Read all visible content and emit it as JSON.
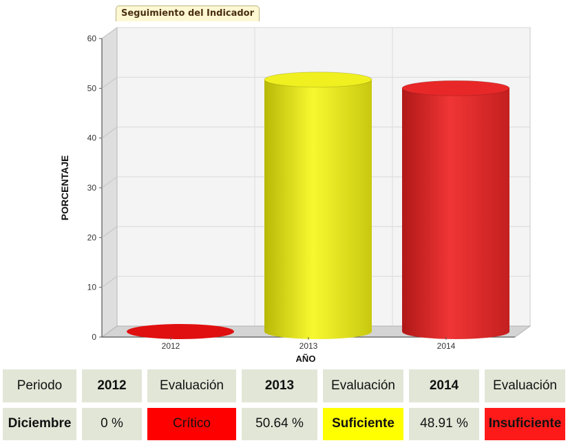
{
  "chart_data": {
    "type": "bar",
    "style": "3d-cylinder",
    "title": "Seguimiento del Indicador",
    "xlabel": "AÑO",
    "ylabel": "PORCENTAJE",
    "categories": [
      "2012",
      "2013",
      "2014"
    ],
    "values": [
      0,
      50.64,
      48.91
    ],
    "bar_colors": [
      "#e01010",
      "#f0f020",
      "#e82828"
    ],
    "ylim": [
      0,
      60
    ],
    "yticks": [
      "0",
      "10",
      "20",
      "30",
      "40",
      "50",
      "60"
    ],
    "grid": true,
    "legend": "none"
  },
  "table": {
    "header": [
      "Periodo",
      "2012",
      "Evaluación",
      "2013",
      "Evaluación",
      "2014",
      "Evaluación"
    ],
    "row": [
      "Diciembre",
      "0 %",
      "Crítico",
      "50.64 %",
      "Suficiente",
      "48.91 %",
      "Insuficiente"
    ],
    "row_colors": [
      "",
      "",
      "#ff0000",
      "",
      "#ffff00",
      "",
      "#ff1a1a"
    ]
  }
}
